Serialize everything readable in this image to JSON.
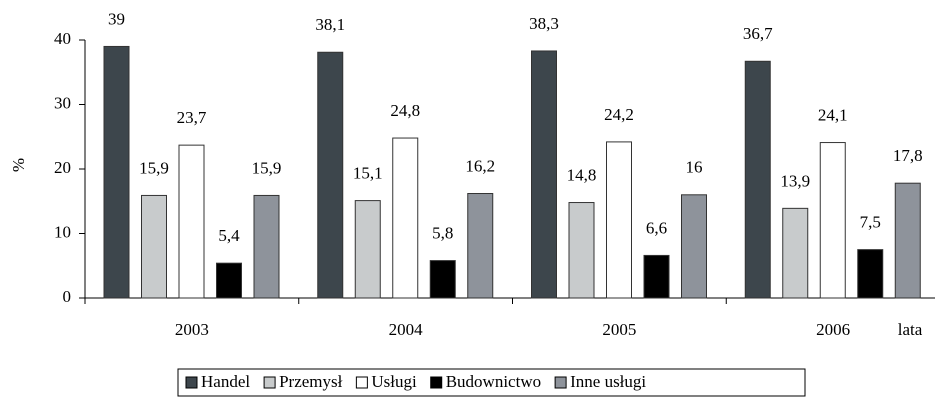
{
  "chart_data": {
    "type": "bar",
    "categories": [
      "2003",
      "2004",
      "2005",
      "2006"
    ],
    "series": [
      {
        "name": "Handel",
        "color": "#3d464c",
        "values": [
          39,
          38.1,
          38.3,
          36.7
        ],
        "value_labels": [
          "39",
          "38,1",
          "38,3",
          "36,7"
        ]
      },
      {
        "name": "Przemysł",
        "color": "#c8cbcc",
        "values": [
          15.9,
          15.1,
          14.8,
          13.9
        ],
        "value_labels": [
          "15,9",
          "15,1",
          "14,8",
          "13,9"
        ]
      },
      {
        "name": "Usługi",
        "color": "#ffffff",
        "values": [
          23.7,
          24.8,
          24.2,
          24.1
        ],
        "value_labels": [
          "23,7",
          "24,8",
          "24,2",
          "24,1"
        ]
      },
      {
        "name": "Budownictwo",
        "color": "#000000",
        "values": [
          5.4,
          5.8,
          6.6,
          7.5
        ],
        "value_labels": [
          "5,4",
          "5,8",
          "6,6",
          "7,5"
        ]
      },
      {
        "name": "Inne usługi",
        "color": "#8e939b",
        "values": [
          15.9,
          16.2,
          16,
          17.8
        ],
        "value_labels": [
          "15,9",
          "16,2",
          "16",
          "17,8"
        ]
      }
    ],
    "y_label": "%",
    "x_label": "lata",
    "ylim": [
      0,
      40
    ],
    "yticks": [
      0,
      10,
      20,
      30,
      40
    ],
    "grid": false,
    "legend": "bottom"
  }
}
